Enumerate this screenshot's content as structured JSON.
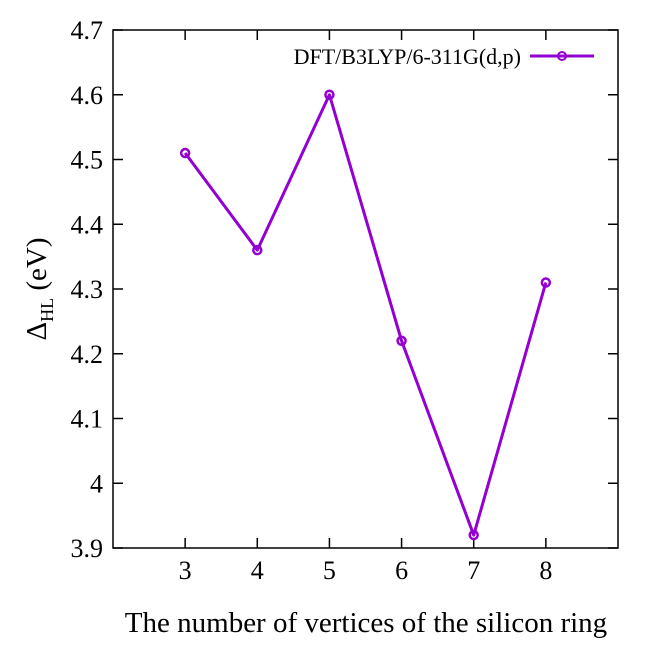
{
  "chart_data": {
    "type": "line",
    "title": "",
    "xlabel": "The number of vertices of the silicon ring",
    "ylabel": {
      "symbol": "Δ",
      "subscript": "HL",
      "unit": " (eV)"
    },
    "x": [
      3,
      4,
      5,
      6,
      7,
      8
    ],
    "xticks": [
      "3",
      "4",
      "5",
      "6",
      "7",
      "8"
    ],
    "xlim": [
      2,
      9
    ],
    "yticks": [
      "3.9",
      "4",
      "4.1",
      "4.2",
      "4.3",
      "4.4",
      "4.5",
      "4.6",
      "4.7"
    ],
    "ylim": [
      3.9,
      4.7
    ],
    "grid": false,
    "legend_position": "top-right",
    "series": [
      {
        "name": "DFT/B3LYP/6-311G(d,p)",
        "color": "#9400d3",
        "marker": "circle",
        "values": [
          4.51,
          4.36,
          4.6,
          4.22,
          3.92,
          4.31
        ]
      }
    ]
  }
}
